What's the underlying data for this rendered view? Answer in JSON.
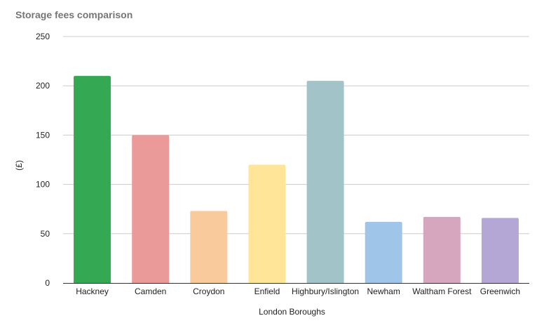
{
  "chart_data": {
    "type": "bar",
    "title": "Storage fees comparison",
    "xlabel": "London Boroughs",
    "ylabel": "(£)",
    "categories": [
      "Hackney",
      "Camden",
      "Croydon",
      "Enfield",
      "Highbury/Islington",
      "Newham",
      "Waltham Forest",
      "Greenwich"
    ],
    "values": [
      210,
      150,
      73,
      120,
      205,
      62,
      67,
      66
    ],
    "colors": [
      "#34a853",
      "#ea9a99",
      "#f9cb9c",
      "#ffe598",
      "#a2c4c9",
      "#9fc5e8",
      "#d5a6bd",
      "#b4a7d6"
    ],
    "ylim": [
      0,
      250
    ],
    "yticks": [
      0,
      50,
      100,
      150,
      200,
      250
    ],
    "grid": true,
    "legend": "none"
  }
}
